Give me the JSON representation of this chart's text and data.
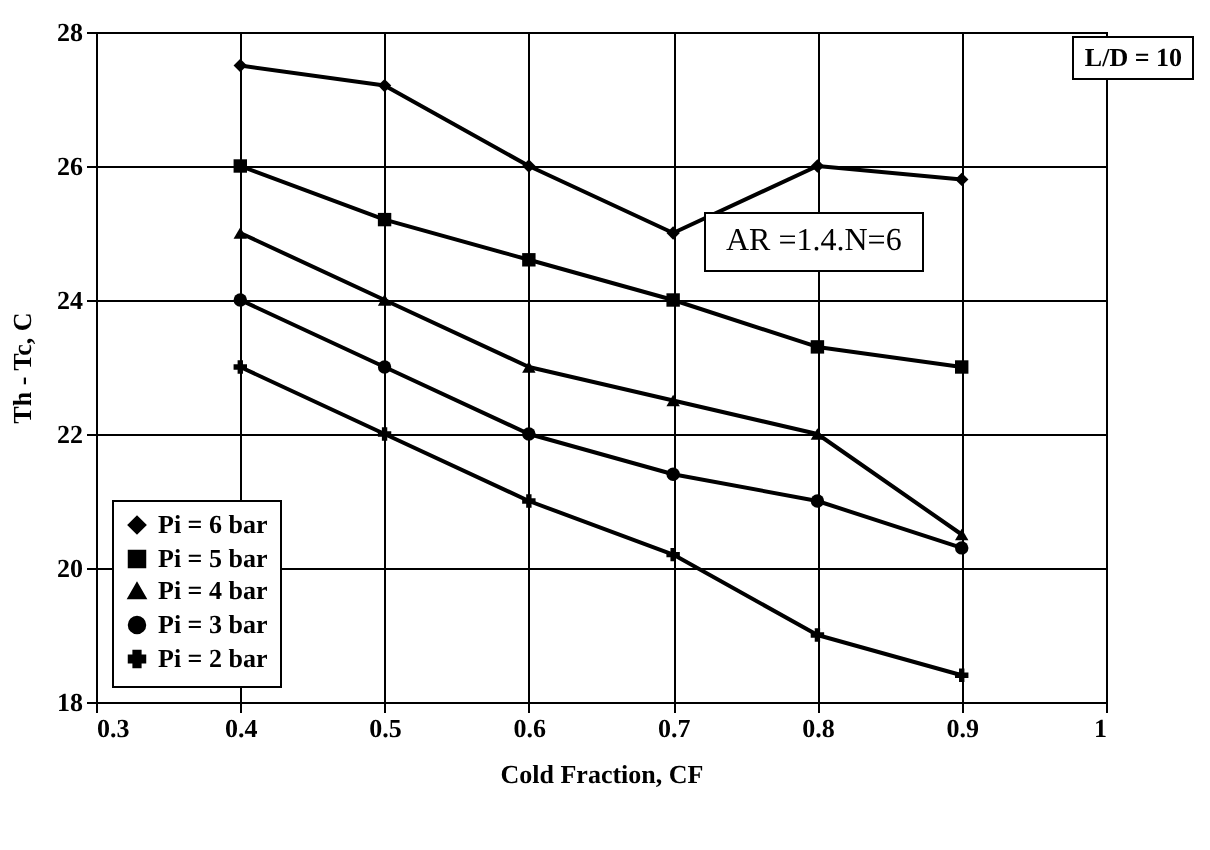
{
  "chart_data": {
    "type": "line",
    "xlabel": "Cold Fraction, CF",
    "ylabel": "Th - Tc, C",
    "x": [
      0.4,
      0.5,
      0.6,
      0.7,
      0.8,
      0.9
    ],
    "series": [
      {
        "name": "Pi = 6 bar",
        "color": "#000000",
        "marker": "diamond",
        "values": [
          27.5,
          27.2,
          26,
          25,
          26,
          25.8
        ]
      },
      {
        "name": "Pi = 5 bar",
        "color": "#000000",
        "marker": "square",
        "values": [
          26,
          25.2,
          24.6,
          24,
          23.3,
          23
        ]
      },
      {
        "name": "Pi = 4 bar",
        "color": "#000000",
        "marker": "triangle",
        "values": [
          25,
          24,
          23,
          22.5,
          22,
          20.5
        ]
      },
      {
        "name": "Pi = 3 bar",
        "color": "#000000",
        "marker": "circle",
        "values": [
          24,
          23,
          22,
          21.4,
          21,
          20.3
        ]
      },
      {
        "name": "Pi = 2 bar",
        "color": "#000000",
        "marker": "cross",
        "values": [
          23,
          22,
          21,
          20.2,
          19,
          18.4
        ]
      }
    ],
    "xlim": [
      0.3,
      1
    ],
    "xticks": [
      0.3,
      0.4,
      0.5,
      0.6,
      0.7,
      0.8,
      0.9,
      1
    ],
    "ylim": [
      18,
      28
    ],
    "yticks": [
      18,
      20,
      22,
      24,
      26,
      28
    ],
    "grid": true,
    "legend": "bottom left",
    "line_style": "solid",
    "annotations": [
      "L/D = 10",
      "AR =1.4.N=6"
    ]
  }
}
